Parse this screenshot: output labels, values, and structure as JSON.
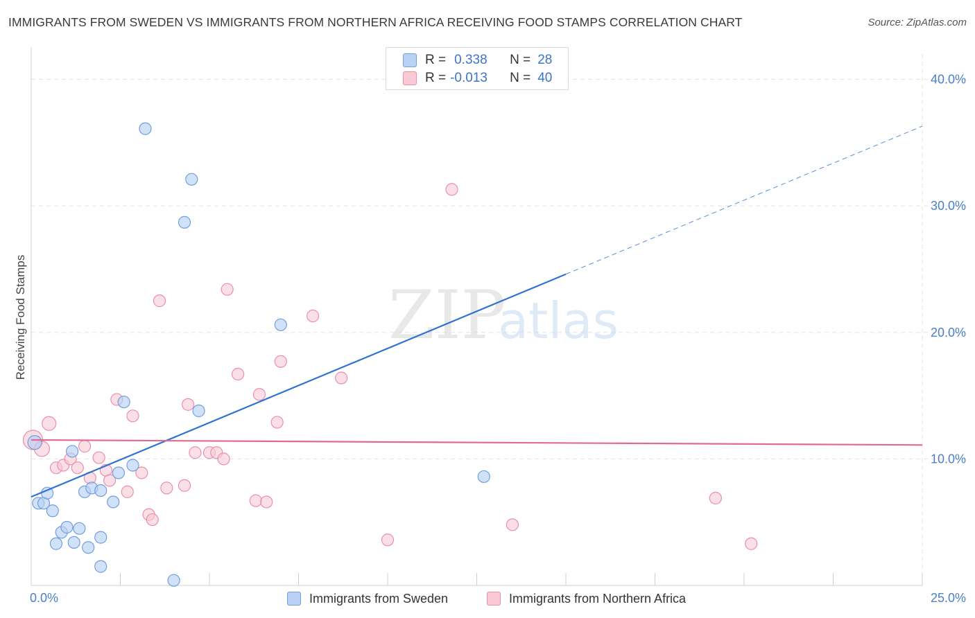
{
  "header": {
    "title": "IMMIGRANTS FROM SWEDEN VS IMMIGRANTS FROM NORTHERN AFRICA RECEIVING FOOD STAMPS CORRELATION CHART",
    "source": "Source: ZipAtlas.com"
  },
  "legend": {
    "sweden": {
      "r_label": "R =",
      "r_value": "0.338",
      "n_label": "N =",
      "n_value": "28"
    },
    "nafrica": {
      "r_label": "R =",
      "r_value": "-0.013",
      "n_label": "N =",
      "n_value": "40"
    }
  },
  "watermark": {
    "zip": "ZIP",
    "atlas": "atlas"
  },
  "colors": {
    "sweden_fill": "#b9d1f3",
    "sweden_stroke": "#6f9fe0",
    "sweden_line": "#2f72d2",
    "nafrica_fill": "#f9c9d6",
    "nafrica_stroke": "#ea8fab",
    "nafrica_line": "#e06a92",
    "tick_text": "#4a7fc8"
  },
  "chart_data": {
    "type": "scatter",
    "title": "IMMIGRANTS FROM SWEDEN VS IMMIGRANTS FROM NORTHERN AFRICA RECEIVING FOOD STAMPS CORRELATION CHART",
    "xlabel": "",
    "ylabel": "Receiving Food Stamps",
    "xlim": [
      0,
      25
    ],
    "ylim": [
      0,
      42
    ],
    "x_tick_labels": [
      "0.0%",
      "25.0%"
    ],
    "y_ticks": [
      10,
      20,
      30,
      40
    ],
    "y_tick_labels": [
      "10.0%",
      "20.0%",
      "30.0%",
      "40.0%"
    ],
    "grid": true,
    "series": [
      {
        "name": "Immigrants from Sweden",
        "points": [
          [
            0.1,
            11.3
          ],
          [
            0.2,
            6.5
          ],
          [
            0.35,
            6.5
          ],
          [
            0.45,
            7.3
          ],
          [
            0.6,
            5.9
          ],
          [
            0.7,
            3.3
          ],
          [
            0.85,
            4.2
          ],
          [
            1.0,
            4.6
          ],
          [
            1.2,
            3.4
          ],
          [
            1.35,
            4.5
          ],
          [
            1.15,
            10.6
          ],
          [
            1.5,
            7.4
          ],
          [
            1.7,
            7.7
          ],
          [
            1.6,
            3.0
          ],
          [
            1.95,
            3.8
          ],
          [
            1.95,
            7.5
          ],
          [
            2.3,
            6.6
          ],
          [
            1.95,
            1.5
          ],
          [
            2.45,
            8.9
          ],
          [
            2.6,
            14.5
          ],
          [
            2.85,
            9.5
          ],
          [
            3.2,
            36.1
          ],
          [
            4.0,
            0.4
          ],
          [
            4.3,
            28.7
          ],
          [
            4.5,
            32.1
          ],
          [
            4.7,
            13.8
          ],
          [
            7.0,
            20.6
          ],
          [
            12.7,
            8.6
          ]
        ],
        "trend": {
          "x0": 0,
          "y0": 7.0,
          "x1": 15.0,
          "y1": 24.6,
          "dashed_to_x": 25.0,
          "dashed_to_y": 36.3
        }
      },
      {
        "name": "Immigrants from Northern Africa",
        "points": [
          [
            0.05,
            11.5
          ],
          [
            0.3,
            10.8
          ],
          [
            0.5,
            12.8
          ],
          [
            0.7,
            9.3
          ],
          [
            0.9,
            9.5
          ],
          [
            1.1,
            10.0
          ],
          [
            1.3,
            9.3
          ],
          [
            1.5,
            11.0
          ],
          [
            1.65,
            8.5
          ],
          [
            1.9,
            10.1
          ],
          [
            2.1,
            9.1
          ],
          [
            2.2,
            8.3
          ],
          [
            2.4,
            14.7
          ],
          [
            2.7,
            7.4
          ],
          [
            2.85,
            13.4
          ],
          [
            3.1,
            8.9
          ],
          [
            3.3,
            5.6
          ],
          [
            3.4,
            5.2
          ],
          [
            3.6,
            22.5
          ],
          [
            3.8,
            7.7
          ],
          [
            4.3,
            7.9
          ],
          [
            4.4,
            14.3
          ],
          [
            4.6,
            10.5
          ],
          [
            5.0,
            10.5
          ],
          [
            5.2,
            10.5
          ],
          [
            5.4,
            10.0
          ],
          [
            5.5,
            23.4
          ],
          [
            5.8,
            16.7
          ],
          [
            6.3,
            6.7
          ],
          [
            6.4,
            15.1
          ],
          [
            6.6,
            6.6
          ],
          [
            6.9,
            12.9
          ],
          [
            7.0,
            17.7
          ],
          [
            7.9,
            21.3
          ],
          [
            8.7,
            16.4
          ],
          [
            10.0,
            3.6
          ],
          [
            11.8,
            31.3
          ],
          [
            13.5,
            4.8
          ],
          [
            19.2,
            6.9
          ],
          [
            20.2,
            3.3
          ]
        ],
        "trend": {
          "x0": 0,
          "y0": 11.5,
          "x1": 25.0,
          "y1": 11.1
        }
      }
    ]
  },
  "bottom_legend": {
    "sweden": "Immigrants from Sweden",
    "nafrica": "Immigrants from Northern Africa"
  }
}
